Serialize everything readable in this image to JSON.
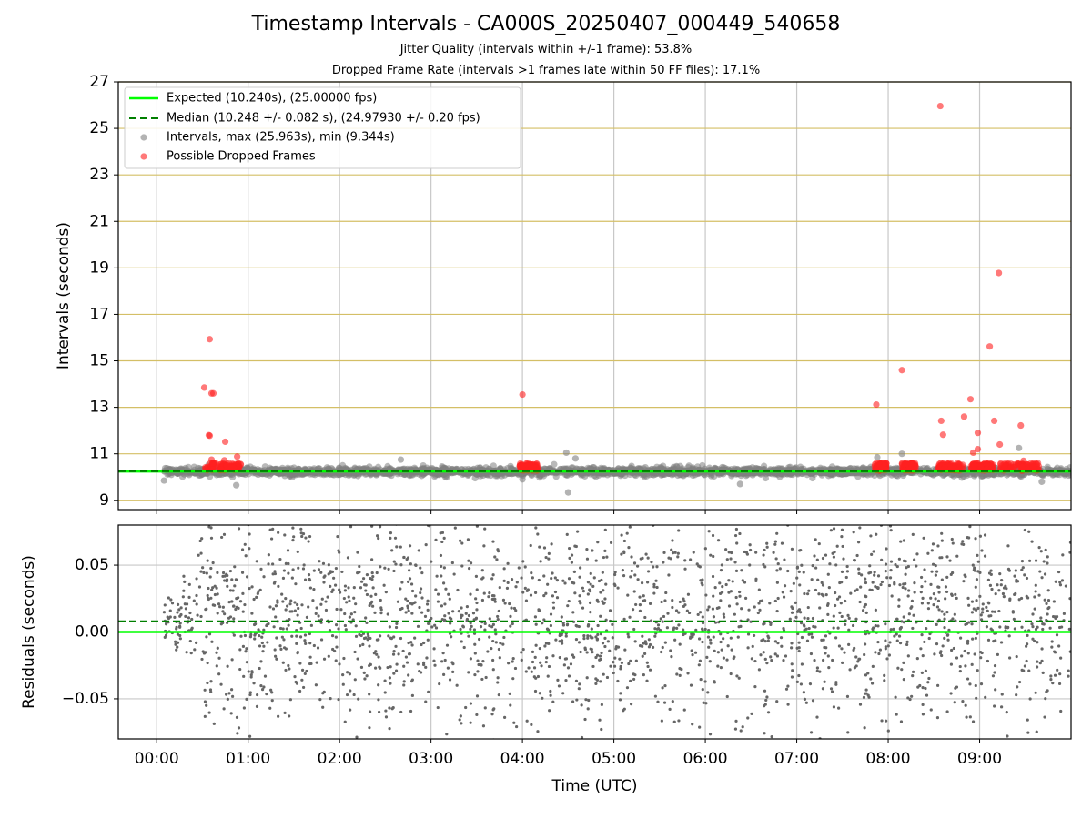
{
  "title": "Timestamp Intervals - CA000S_20250407_000449_540658",
  "subtitle_1": "Jitter Quality (intervals within +/-1 frame): 53.8%",
  "subtitle_2": "Dropped Frame Rate (intervals >1 frames late within 50 FF files): 17.1%",
  "colors": {
    "expected": "#00ff00",
    "median": "#007f00",
    "intervals": "#808080",
    "dropped": "#ff2020",
    "hgrid_top": "#d4bf66",
    "grid": "#c8c8c8"
  },
  "chart_data": [
    {
      "type": "scatter",
      "panel": "intervals",
      "ylabel": "Intervals (seconds)",
      "xlim": [
        -0.42,
        10.0
      ],
      "ylim": [
        8.6,
        27.0
      ],
      "yticks": [
        "9",
        "11",
        "13",
        "15",
        "17",
        "19",
        "21",
        "23",
        "25",
        "27"
      ],
      "ytick_values": [
        9,
        11,
        13,
        15,
        17,
        19,
        21,
        23,
        25,
        27
      ],
      "grid": true,
      "legend_position": "top-left",
      "legend": [
        "Expected (10.240s), (25.00000 fps)",
        "Median (10.248 +/- 0.082 s), (24.97930 +/- 0.20 fps)",
        "Intervals, max (25.963s), min (9.344s)",
        "Possible Dropped Frames"
      ],
      "expected_line": 10.24,
      "median_line": 10.248,
      "intervals_band": {
        "center": 10.24,
        "spread": 0.082,
        "x_range": [
          0.08,
          10.0
        ]
      },
      "interval_outliers": [
        {
          "x": 0.08,
          "y": 9.85
        },
        {
          "x": 0.87,
          "y": 9.65
        },
        {
          "x": 2.67,
          "y": 10.75
        },
        {
          "x": 4.0,
          "y": 9.9
        },
        {
          "x": 4.48,
          "y": 11.05
        },
        {
          "x": 4.5,
          "y": 9.34
        },
        {
          "x": 4.58,
          "y": 10.8
        },
        {
          "x": 6.38,
          "y": 9.7
        },
        {
          "x": 7.88,
          "y": 10.85
        },
        {
          "x": 8.15,
          "y": 11.0
        },
        {
          "x": 9.43,
          "y": 11.25
        },
        {
          "x": 9.68,
          "y": 9.8
        }
      ],
      "dropped_frames": [
        {
          "x": 0.52,
          "y": 13.85
        },
        {
          "x": 0.58,
          "y": 15.93
        },
        {
          "x": 0.6,
          "y": 13.6
        },
        {
          "x": 0.62,
          "y": 13.6
        },
        {
          "x": 0.57,
          "y": 11.8
        },
        {
          "x": 0.58,
          "y": 11.78
        },
        {
          "x": 0.75,
          "y": 11.52
        },
        {
          "x": 0.88,
          "y": 10.88
        },
        {
          "x": 0.74,
          "y": 10.72
        },
        {
          "x": 0.6,
          "y": 10.75
        },
        {
          "x": 4.0,
          "y": 13.55
        },
        {
          "x": 7.87,
          "y": 13.12
        },
        {
          "x": 8.15,
          "y": 14.6
        },
        {
          "x": 8.57,
          "y": 25.96
        },
        {
          "x": 8.58,
          "y": 12.42
        },
        {
          "x": 8.6,
          "y": 11.82
        },
        {
          "x": 8.83,
          "y": 12.6
        },
        {
          "x": 8.9,
          "y": 13.35
        },
        {
          "x": 8.93,
          "y": 11.05
        },
        {
          "x": 8.98,
          "y": 11.9
        },
        {
          "x": 8.98,
          "y": 11.2
        },
        {
          "x": 9.11,
          "y": 15.62
        },
        {
          "x": 9.16,
          "y": 12.42
        },
        {
          "x": 9.21,
          "y": 18.78
        },
        {
          "x": 9.22,
          "y": 11.4
        },
        {
          "x": 9.45,
          "y": 12.22
        },
        {
          "x": 9.48,
          "y": 10.7
        }
      ],
      "dropped_clusters": [
        {
          "x_range": [
            0.53,
            0.92
          ]
        },
        {
          "x_range": [
            3.97,
            4.17
          ]
        },
        {
          "x_range": [
            7.85,
            7.98
          ]
        },
        {
          "x_range": [
            8.15,
            8.3
          ]
        },
        {
          "x_range": [
            8.55,
            8.82
          ]
        },
        {
          "x_range": [
            8.9,
            9.15
          ]
        },
        {
          "x_range": [
            9.22,
            9.65
          ]
        }
      ]
    },
    {
      "type": "scatter",
      "panel": "residuals",
      "ylabel": "Residuals (seconds)",
      "xlabel": "Time (UTC)",
      "xlim": [
        -0.42,
        10.0
      ],
      "ylim": [
        -0.08,
        0.08
      ],
      "yticks": [
        "−0.05",
        "0.00",
        "0.05"
      ],
      "ytick_values": [
        -0.05,
        0.0,
        0.05
      ],
      "xticks": [
        "00:00",
        "01:00",
        "02:00",
        "03:00",
        "04:00",
        "05:00",
        "06:00",
        "07:00",
        "08:00",
        "09:00"
      ],
      "xtick_values": [
        0,
        1,
        2,
        3,
        4,
        5,
        6,
        7,
        8,
        9
      ],
      "expected_line": 0.0,
      "median_line": 0.008,
      "residual_spread": 0.055,
      "x_range": [
        0.08,
        10.0
      ],
      "grid": true
    }
  ]
}
